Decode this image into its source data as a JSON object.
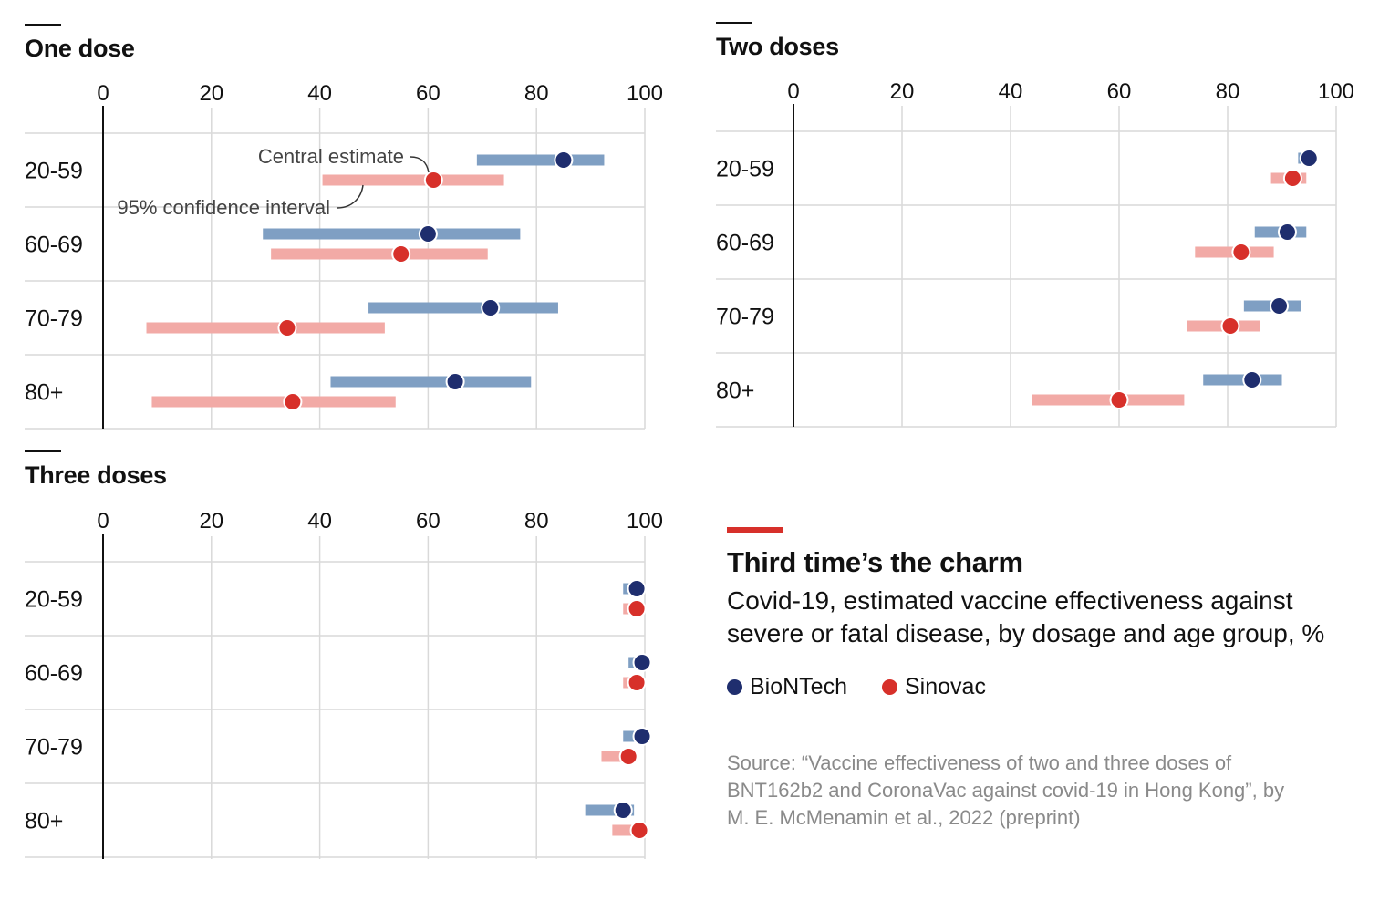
{
  "title": "Third time’s the charm",
  "subtitle": "Covid-19, estimated vaccine effectiveness against severe or fatal disease, by dosage and age group, %",
  "legend": [
    {
      "name": "BioNTech",
      "color": "#1f2e6e"
    },
    {
      "name": "Sinovac",
      "color": "#d7302a"
    }
  ],
  "source": "Source: “Vaccine effectiveness of two and three doses of BNT162b2 and CoronaVac against covid-19 in Hong Kong”, by M. E. McMenamin et al., 2022 (preprint)",
  "annotations": {
    "central": "Central estimate",
    "interval": "95% confidence interval"
  },
  "colors": {
    "biontech_dot": "#1f2e6e",
    "biontech_bar": "#7f9fc3",
    "sinovac_dot": "#d7302a",
    "sinovac_bar": "#f2aaa6"
  },
  "chart_data": [
    {
      "type": "dot-interval",
      "title": "One dose",
      "xlim": [
        0,
        100
      ],
      "xticks": [
        0,
        20,
        40,
        60,
        80,
        100
      ],
      "categories": [
        "20-59",
        "60-69",
        "70-79",
        "80+"
      ],
      "series": [
        {
          "name": "BioNTech",
          "estimate": [
            85,
            60,
            71.5,
            65
          ],
          "low": [
            69,
            29.5,
            49,
            42
          ],
          "high": [
            92.5,
            77,
            84,
            79
          ]
        },
        {
          "name": "Sinovac",
          "estimate": [
            61,
            55,
            34,
            35
          ],
          "low": [
            40.5,
            31,
            8,
            9
          ],
          "high": [
            74,
            71,
            52,
            54
          ]
        }
      ]
    },
    {
      "type": "dot-interval",
      "title": "Two doses",
      "xlim": [
        0,
        100
      ],
      "xticks": [
        0,
        20,
        40,
        60,
        80,
        100
      ],
      "categories": [
        "20-59",
        "60-69",
        "70-79",
        "80+"
      ],
      "series": [
        {
          "name": "BioNTech",
          "estimate": [
            95,
            91,
            89.5,
            84.5
          ],
          "low": [
            93,
            85,
            83,
            75.5
          ],
          "high": [
            96,
            94.5,
            93.5,
            90
          ]
        },
        {
          "name": "Sinovac",
          "estimate": [
            92,
            82.5,
            80.5,
            60
          ],
          "low": [
            88,
            74,
            72.5,
            44
          ],
          "high": [
            94.5,
            88.5,
            86,
            72
          ]
        }
      ]
    },
    {
      "type": "dot-interval",
      "title": "Three doses",
      "xlim": [
        0,
        100
      ],
      "xticks": [
        0,
        20,
        40,
        60,
        80,
        100
      ],
      "categories": [
        "20-59",
        "60-69",
        "70-79",
        "80+"
      ],
      "series": [
        {
          "name": "BioNTech",
          "estimate": [
            98.5,
            99.5,
            99.5,
            96
          ],
          "low": [
            96,
            97,
            96,
            89
          ],
          "high": [
            99.5,
            100,
            100,
            98
          ]
        },
        {
          "name": "Sinovac",
          "estimate": [
            98.5,
            98.5,
            97,
            99
          ],
          "low": [
            96,
            96,
            92,
            94
          ],
          "high": [
            99.5,
            99.5,
            98.5,
            99.5
          ]
        }
      ]
    }
  ]
}
